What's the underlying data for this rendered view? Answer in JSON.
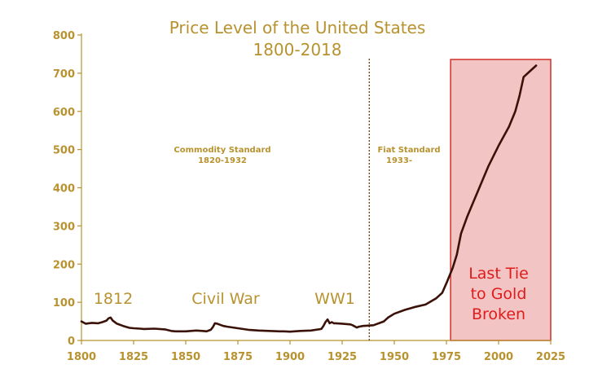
{
  "chart_data": {
    "type": "line",
    "title": "Price Level of the United States",
    "subtitle": "1800-2018",
    "xlabel": "",
    "ylabel": "",
    "xlim": [
      1800,
      2025
    ],
    "ylim": [
      0,
      800
    ],
    "x_ticks": [
      1800,
      1825,
      1850,
      1875,
      1900,
      1925,
      1950,
      1975,
      2000,
      2025
    ],
    "y_ticks": [
      0,
      100,
      200,
      300,
      400,
      500,
      600,
      700,
      800
    ],
    "grid": false,
    "colors": {
      "axis": "#b8922e",
      "line": "#3a1208",
      "highlight_fill": "#f3c4c4",
      "highlight_border": "#d0302a",
      "highlight_text": "#e01b1b"
    },
    "series": [
      {
        "x": [
          1800,
          1802,
          1805,
          1808,
          1810,
          1812,
          1813,
          1814,
          1815,
          1817,
          1820,
          1823,
          1825,
          1828,
          1830,
          1835,
          1840,
          1843,
          1845,
          1850,
          1855,
          1858,
          1860,
          1862,
          1863,
          1864,
          1865,
          1866,
          1868,
          1870,
          1875,
          1880,
          1885,
          1890,
          1895,
          1897,
          1900,
          1905,
          1910,
          1915,
          1916,
          1917,
          1918,
          1919,
          1920,
          1921,
          1922,
          1925,
          1929,
          1930,
          1932,
          1933,
          1935,
          1940,
          1945,
          1947,
          1950,
          1955,
          1960,
          1965,
          1970,
          1973,
          1975,
          1978,
          1980,
          1982,
          1985,
          1990,
          1995,
          2000,
          2005,
          2008,
          2010,
          2012,
          2015,
          2018
        ],
        "y": [
          50,
          44,
          46,
          45,
          48,
          52,
          58,
          60,
          52,
          44,
          38,
          33,
          32,
          31,
          30,
          31,
          29,
          25,
          24,
          24,
          26,
          25,
          24,
          28,
          35,
          45,
          44,
          42,
          38,
          36,
          32,
          28,
          26,
          25,
          24,
          24,
          23,
          25,
          26,
          30,
          38,
          48,
          55,
          45,
          48,
          45,
          45,
          44,
          42,
          40,
          34,
          36,
          38,
          40,
          50,
          60,
          70,
          80,
          88,
          94,
          110,
          125,
          150,
          190,
          225,
          280,
          325,
          390,
          455,
          510,
          560,
          600,
          640,
          690,
          705,
          720
        ]
      }
    ],
    "divider": {
      "x": 1938
    },
    "highlight": {
      "x_range": [
        1977,
        2025
      ],
      "label_lines": [
        "Last Tie",
        "to Gold",
        "Broken"
      ]
    },
    "eras": [
      {
        "line1": "Commodity Standard",
        "line2": "1820-1932"
      },
      {
        "line1": "Fiat Standard",
        "line2": "1933-"
      }
    ],
    "events": [
      "1812",
      "Civil War",
      "WW1"
    ]
  }
}
